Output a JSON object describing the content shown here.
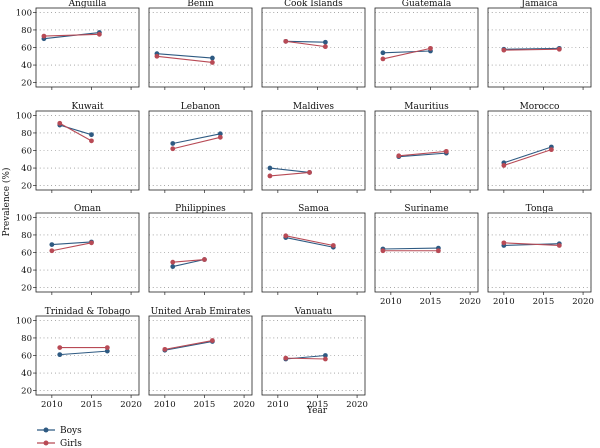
{
  "figure": {
    "ylabel": "Prevalence (%)",
    "xlabel": "Year",
    "yticks": [
      20,
      40,
      60,
      80,
      100
    ],
    "xticks": [
      2010,
      2015,
      2020
    ],
    "legend": [
      {
        "name": "Boys",
        "color": "#2e5a82"
      },
      {
        "name": "Girls",
        "color": "#b84a55"
      }
    ]
  },
  "chart_data": [
    {
      "type": "line",
      "title": "Anguilla",
      "ylim": [
        15,
        105
      ],
      "xlim": [
        2008,
        2021
      ],
      "series": [
        {
          "name": "Boys",
          "x": [
            2009,
            2016
          ],
          "y": [
            70,
            77
          ]
        },
        {
          "name": "Girls",
          "x": [
            2009,
            2016
          ],
          "y": [
            73,
            75
          ]
        }
      ]
    },
    {
      "type": "line",
      "title": "Benin",
      "ylim": [
        15,
        105
      ],
      "xlim": [
        2008,
        2021
      ],
      "series": [
        {
          "name": "Boys",
          "x": [
            2009,
            2016
          ],
          "y": [
            53,
            48
          ]
        },
        {
          "name": "Girls",
          "x": [
            2009,
            2016
          ],
          "y": [
            50,
            43
          ]
        }
      ]
    },
    {
      "type": "line",
      "title": "Cook Islands",
      "ylim": [
        15,
        105
      ],
      "xlim": [
        2008,
        2021
      ],
      "series": [
        {
          "name": "Boys",
          "x": [
            2011,
            2016
          ],
          "y": [
            67,
            66
          ]
        },
        {
          "name": "Girls",
          "x": [
            2011,
            2016
          ],
          "y": [
            67,
            61
          ]
        }
      ]
    },
    {
      "type": "line",
      "title": "Guatemala",
      "ylim": [
        15,
        105
      ],
      "xlim": [
        2008,
        2021
      ],
      "series": [
        {
          "name": "Boys",
          "x": [
            2009,
            2015
          ],
          "y": [
            54,
            56
          ]
        },
        {
          "name": "Girls",
          "x": [
            2009,
            2015
          ],
          "y": [
            47,
            59
          ]
        }
      ]
    },
    {
      "type": "line",
      "title": "Jamaica",
      "ylim": [
        15,
        105
      ],
      "xlim": [
        2008,
        2021
      ],
      "series": [
        {
          "name": "Boys",
          "x": [
            2010,
            2017
          ],
          "y": [
            58,
            59
          ]
        },
        {
          "name": "Girls",
          "x": [
            2010,
            2017
          ],
          "y": [
            57,
            58
          ]
        }
      ]
    },
    {
      "type": "line",
      "title": "Kuwait",
      "ylim": [
        15,
        105
      ],
      "xlim": [
        2008,
        2021
      ],
      "series": [
        {
          "name": "Boys",
          "x": [
            2011,
            2015
          ],
          "y": [
            89,
            78
          ]
        },
        {
          "name": "Girls",
          "x": [
            2011,
            2015
          ],
          "y": [
            91,
            71
          ]
        }
      ]
    },
    {
      "type": "line",
      "title": "Lebanon",
      "ylim": [
        15,
        105
      ],
      "xlim": [
        2008,
        2021
      ],
      "series": [
        {
          "name": "Boys",
          "x": [
            2011,
            2017
          ],
          "y": [
            68,
            79
          ]
        },
        {
          "name": "Girls",
          "x": [
            2011,
            2017
          ],
          "y": [
            62,
            75
          ]
        }
      ]
    },
    {
      "type": "line",
      "title": "Maldives",
      "ylim": [
        15,
        105
      ],
      "xlim": [
        2008,
        2021
      ],
      "series": [
        {
          "name": "Boys",
          "x": [
            2009,
            2014
          ],
          "y": [
            40,
            35
          ]
        },
        {
          "name": "Girls",
          "x": [
            2009,
            2014
          ],
          "y": [
            31,
            35
          ]
        }
      ]
    },
    {
      "type": "line",
      "title": "Mauritius",
      "ylim": [
        15,
        105
      ],
      "xlim": [
        2008,
        2021
      ],
      "series": [
        {
          "name": "Boys",
          "x": [
            2011,
            2017
          ],
          "y": [
            53,
            57
          ]
        },
        {
          "name": "Girls",
          "x": [
            2011,
            2017
          ],
          "y": [
            54,
            59
          ]
        }
      ]
    },
    {
      "type": "line",
      "title": "Morocco",
      "ylim": [
        15,
        105
      ],
      "xlim": [
        2008,
        2021
      ],
      "series": [
        {
          "name": "Boys",
          "x": [
            2010,
            2016
          ],
          "y": [
            46,
            64
          ]
        },
        {
          "name": "Girls",
          "x": [
            2010,
            2016
          ],
          "y": [
            43,
            61
          ]
        }
      ]
    },
    {
      "type": "line",
      "title": "Oman",
      "ylim": [
        15,
        105
      ],
      "xlim": [
        2008,
        2021
      ],
      "series": [
        {
          "name": "Boys",
          "x": [
            2010,
            2015
          ],
          "y": [
            69,
            72
          ]
        },
        {
          "name": "Girls",
          "x": [
            2010,
            2015
          ],
          "y": [
            62,
            71
          ]
        }
      ]
    },
    {
      "type": "line",
      "title": "Philippines",
      "ylim": [
        15,
        105
      ],
      "xlim": [
        2008,
        2021
      ],
      "series": [
        {
          "name": "Boys",
          "x": [
            2011,
            2015
          ],
          "y": [
            44,
            52
          ]
        },
        {
          "name": "Girls",
          "x": [
            2011,
            2015
          ],
          "y": [
            49,
            52
          ]
        }
      ]
    },
    {
      "type": "line",
      "title": "Samoa",
      "ylim": [
        15,
        105
      ],
      "xlim": [
        2008,
        2021
      ],
      "series": [
        {
          "name": "Boys",
          "x": [
            2011,
            2017
          ],
          "y": [
            77,
            66
          ]
        },
        {
          "name": "Girls",
          "x": [
            2011,
            2017
          ],
          "y": [
            79,
            68
          ]
        }
      ]
    },
    {
      "type": "line",
      "title": "Suriname",
      "ylim": [
        15,
        105
      ],
      "xlim": [
        2008,
        2021
      ],
      "series": [
        {
          "name": "Boys",
          "x": [
            2009,
            2016
          ],
          "y": [
            64,
            65
          ]
        },
        {
          "name": "Girls",
          "x": [
            2009,
            2016
          ],
          "y": [
            62,
            62
          ]
        }
      ]
    },
    {
      "type": "line",
      "title": "Tonga",
      "ylim": [
        15,
        105
      ],
      "xlim": [
        2008,
        2021
      ],
      "series": [
        {
          "name": "Boys",
          "x": [
            2010,
            2017
          ],
          "y": [
            68,
            70
          ]
        },
        {
          "name": "Girls",
          "x": [
            2010,
            2017
          ],
          "y": [
            71,
            68
          ]
        }
      ]
    },
    {
      "type": "line",
      "title": "Trinidad & Tobago",
      "ylim": [
        15,
        105
      ],
      "xlim": [
        2008,
        2021
      ],
      "series": [
        {
          "name": "Boys",
          "x": [
            2011,
            2017
          ],
          "y": [
            61,
            65
          ]
        },
        {
          "name": "Girls",
          "x": [
            2011,
            2017
          ],
          "y": [
            69,
            69
          ]
        }
      ]
    },
    {
      "type": "line",
      "title": "United Arab Emirates",
      "ylim": [
        15,
        105
      ],
      "xlim": [
        2008,
        2021
      ],
      "series": [
        {
          "name": "Boys",
          "x": [
            2010,
            2016
          ],
          "y": [
            66,
            76
          ]
        },
        {
          "name": "Girls",
          "x": [
            2010,
            2016
          ],
          "y": [
            67,
            77
          ]
        }
      ]
    },
    {
      "type": "line",
      "title": "Vanuatu",
      "ylim": [
        15,
        105
      ],
      "xlim": [
        2008,
        2021
      ],
      "series": [
        {
          "name": "Boys",
          "x": [
            2011,
            2016
          ],
          "y": [
            56,
            60
          ]
        },
        {
          "name": "Girls",
          "x": [
            2011,
            2016
          ],
          "y": [
            57,
            56
          ]
        }
      ]
    }
  ]
}
